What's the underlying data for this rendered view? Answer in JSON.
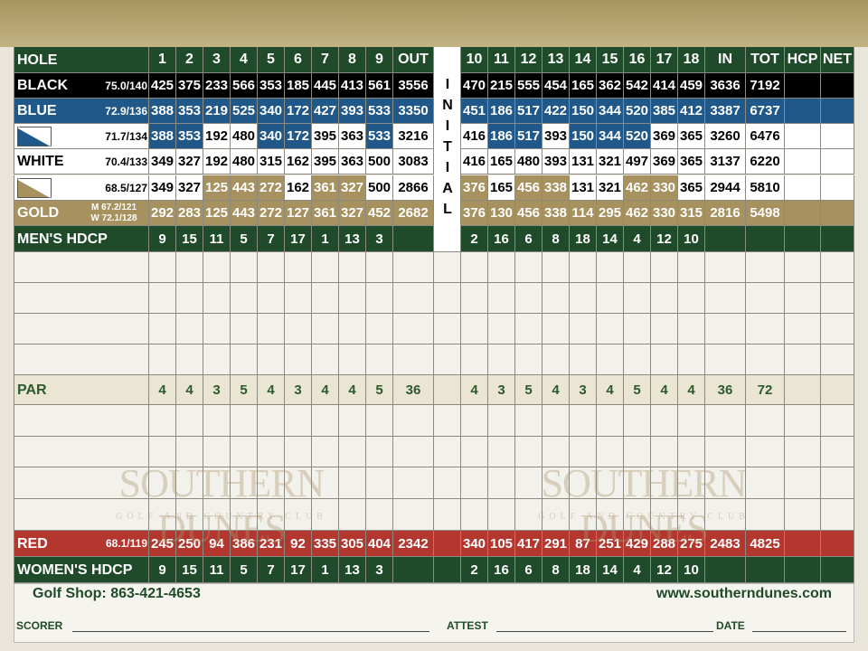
{
  "header": {
    "hole": "HOLE",
    "front": [
      1,
      2,
      3,
      4,
      5,
      6,
      7,
      8,
      9
    ],
    "out": "OUT",
    "initial": "INITIAL",
    "back": [
      10,
      11,
      12,
      13,
      14,
      15,
      16,
      17,
      18
    ],
    "in": "IN",
    "tot": "TOT",
    "hcp": "HCP",
    "net": "NET"
  },
  "tees": [
    {
      "name": "BLACK",
      "rating": "75.0/140",
      "front": [
        425,
        375,
        233,
        566,
        353,
        185,
        445,
        413,
        561
      ],
      "out": 3556,
      "back": [
        470,
        215,
        555,
        454,
        165,
        362,
        542,
        414,
        459
      ],
      "in": 3636,
      "tot": 7192
    },
    {
      "name": "BLUE",
      "rating": "72.9/136",
      "front": [
        388,
        353,
        219,
        525,
        340,
        172,
        427,
        393,
        533
      ],
      "out": 3350,
      "back": [
        451,
        186,
        517,
        422,
        150,
        344,
        520,
        385,
        412
      ],
      "in": 3387,
      "tot": 6737
    },
    {
      "rating": "71.7/134",
      "front": [
        388,
        353,
        192,
        480,
        340,
        172,
        395,
        363,
        533
      ],
      "out": 3216,
      "back": [
        416,
        186,
        517,
        393,
        150,
        344,
        520,
        369,
        365
      ],
      "in": 3260,
      "tot": 6476
    },
    {
      "name": "WHITE",
      "rating": "70.4/133",
      "front": [
        349,
        327,
        192,
        480,
        315,
        162,
        395,
        363,
        500
      ],
      "out": 3083,
      "back": [
        416,
        165,
        480,
        393,
        131,
        321,
        497,
        369,
        365
      ],
      "in": 3137,
      "tot": 6220
    },
    {
      "rating": "68.5/127",
      "front": [
        349,
        327,
        125,
        443,
        272,
        162,
        361,
        327,
        500
      ],
      "out": 2866,
      "back": [
        376,
        165,
        456,
        338,
        131,
        321,
        462,
        330,
        365
      ],
      "in": 2944,
      "tot": 5810
    },
    {
      "name": "GOLD",
      "rating": [
        "M 67.2/121",
        "W 72.1/128"
      ],
      "front": [
        292,
        283,
        125,
        443,
        272,
        127,
        361,
        327,
        452
      ],
      "out": 2682,
      "back": [
        376,
        130,
        456,
        338,
        114,
        295,
        462,
        330,
        315
      ],
      "in": 2816,
      "tot": 5498
    }
  ],
  "mens_hdcp": {
    "label": "MEN'S HDCP",
    "front": [
      9,
      15,
      11,
      5,
      7,
      17,
      1,
      13,
      3
    ],
    "back": [
      2,
      16,
      6,
      8,
      18,
      14,
      4,
      12,
      10
    ]
  },
  "par": {
    "label": "PAR",
    "front": [
      4,
      4,
      3,
      5,
      4,
      3,
      4,
      4,
      5
    ],
    "out": 36,
    "back": [
      4,
      3,
      5,
      4,
      3,
      4,
      5,
      4,
      4
    ],
    "in": 36,
    "tot": 72
  },
  "red": {
    "name": "RED",
    "rating": "68.1/119",
    "front": [
      245,
      250,
      94,
      386,
      231,
      92,
      335,
      305,
      404
    ],
    "out": 2342,
    "back": [
      340,
      105,
      417,
      291,
      87,
      251,
      429,
      288,
      275
    ],
    "in": 2483,
    "tot": 4825
  },
  "womens_hdcp": {
    "label": "WOMEN'S HDCP",
    "front": [
      9,
      15,
      11,
      5,
      7,
      17,
      1,
      13,
      3
    ],
    "back": [
      2,
      16,
      6,
      8,
      18,
      14,
      4,
      12,
      10
    ]
  },
  "watermark": {
    "name": "SOUTHERN DUNES",
    "tagline": "GOLF AND COUNTRY CLUB"
  },
  "footer": {
    "phone": "Golf Shop: 863-421-4653",
    "website": "www.southerndunes.com",
    "scorer": "SCORER",
    "attest": "ATTEST",
    "date": "DATE"
  }
}
